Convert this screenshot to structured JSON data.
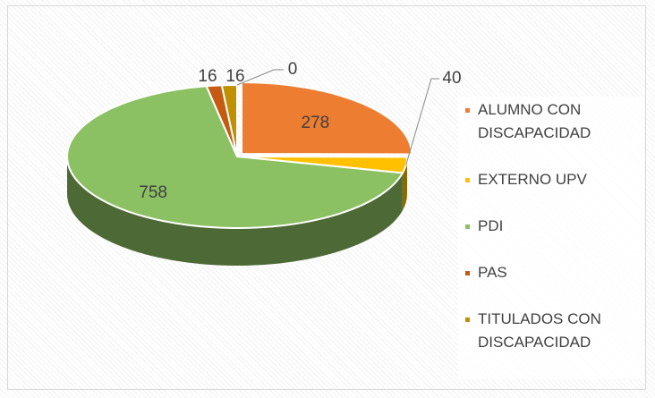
{
  "chart_data": {
    "type": "pie",
    "categories": [
      "ALUMNO  CON DISCAPACIDAD",
      "EXTERNO UPV",
      "PDI",
      "PAS",
      "TITULADOS CON DISCAPACIDAD",
      null
    ],
    "values": [
      278,
      40,
      758,
      16,
      16,
      0
    ],
    "colors": [
      "#ed7d31",
      "#ffc000",
      "#8cc163",
      "#c55a11",
      "#bf9000",
      "#7f6000"
    ]
  }
}
